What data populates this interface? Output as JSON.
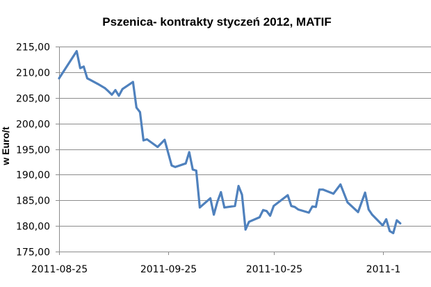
{
  "chart_data": {
    "type": "line",
    "title": "Pszenica- kontrakty styczeń 2012, MATIF",
    "xlabel": "",
    "ylabel": "w Euro/t",
    "ylim": [
      175,
      215
    ],
    "yticks": [
      175,
      180,
      185,
      190,
      195,
      200,
      205,
      210,
      215
    ],
    "ytick_labels": [
      "175,00",
      "180,00",
      "185,00",
      "190,00",
      "195,00",
      "200,00",
      "205,00",
      "210,00",
      "215,00"
    ],
    "xlim": [
      "2011-08-25",
      "2011-11-28"
    ],
    "xticks": [
      "2011-08-25",
      "2011-09-25",
      "2011-10-25",
      "2011-11-25"
    ],
    "xtick_labels": [
      "2011-08-25",
      "2011-09-25",
      "2011-10-25",
      "2011-1"
    ],
    "grid": true,
    "series_color": "#4f81bd",
    "series": [
      {
        "values": [
          [
            "2011-08-25",
            208.8
          ],
          [
            "2011-08-30",
            214.1
          ],
          [
            "2011-08-31",
            210.8
          ],
          [
            "2011-09-01",
            211.1
          ],
          [
            "2011-09-02",
            208.8
          ],
          [
            "2011-09-05",
            207.7
          ],
          [
            "2011-09-07",
            206.9
          ],
          [
            "2011-09-08",
            206.3
          ],
          [
            "2011-09-09",
            205.6
          ],
          [
            "2011-09-10",
            206.5
          ],
          [
            "2011-09-11",
            205.4
          ],
          [
            "2011-09-12",
            206.7
          ],
          [
            "2011-09-15",
            208.1
          ],
          [
            "2011-09-16",
            203.1
          ],
          [
            "2011-09-17",
            202.2
          ],
          [
            "2011-09-18",
            196.7
          ],
          [
            "2011-09-19",
            196.9
          ],
          [
            "2011-09-22",
            195.4
          ],
          [
            "2011-09-24",
            196.8
          ],
          [
            "2011-09-26",
            191.8
          ],
          [
            "2011-09-27",
            191.5
          ],
          [
            "2011-09-30",
            192.2
          ],
          [
            "2011-10-01",
            194.4
          ],
          [
            "2011-10-02",
            191.0
          ],
          [
            "2011-10-03",
            190.8
          ],
          [
            "2011-10-04",
            183.6
          ],
          [
            "2011-10-07",
            185.4
          ],
          [
            "2011-10-08",
            182.2
          ],
          [
            "2011-10-09",
            184.7
          ],
          [
            "2011-10-10",
            186.6
          ],
          [
            "2011-10-11",
            183.6
          ],
          [
            "2011-10-14",
            183.9
          ],
          [
            "2011-10-15",
            187.8
          ],
          [
            "2011-10-16",
            186.1
          ],
          [
            "2011-10-17",
            179.3
          ],
          [
            "2011-10-18",
            180.8
          ],
          [
            "2011-10-21",
            181.7
          ],
          [
            "2011-10-22",
            183.1
          ],
          [
            "2011-10-23",
            182.9
          ],
          [
            "2011-10-24",
            182.0
          ],
          [
            "2011-10-25",
            183.9
          ],
          [
            "2011-10-29",
            186.0
          ],
          [
            "2011-10-30",
            183.9
          ],
          [
            "2011-10-31",
            183.7
          ],
          [
            "2011-11-01",
            183.2
          ],
          [
            "2011-11-04",
            182.6
          ],
          [
            "2011-11-05",
            183.8
          ],
          [
            "2011-11-06",
            183.7
          ],
          [
            "2011-11-07",
            187.1
          ],
          [
            "2011-11-08",
            187.1
          ],
          [
            "2011-11-11",
            186.3
          ],
          [
            "2011-11-13",
            188.1
          ],
          [
            "2011-11-15",
            184.6
          ],
          [
            "2011-11-18",
            182.7
          ],
          [
            "2011-11-20",
            186.5
          ],
          [
            "2011-11-21",
            183.2
          ],
          [
            "2011-11-22",
            182.2
          ],
          [
            "2011-11-25",
            180.1
          ],
          [
            "2011-11-26",
            181.3
          ],
          [
            "2011-11-27",
            179.0
          ],
          [
            "2011-11-28",
            178.6
          ],
          [
            "2011-11-29",
            181.1
          ],
          [
            "2011-11-30",
            180.5
          ]
        ]
      }
    ]
  }
}
